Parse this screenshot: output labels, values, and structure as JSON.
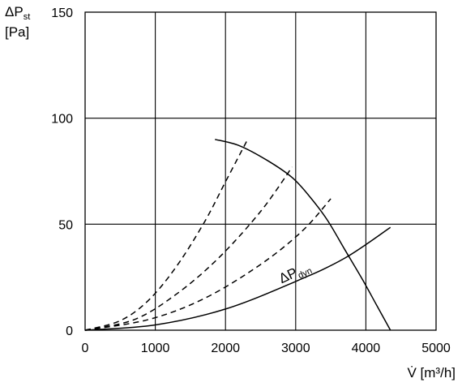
{
  "chart_data": {
    "type": "line",
    "xlim": [
      0,
      5000
    ],
    "ylim": [
      0,
      150
    ],
    "x_ticks": [
      0,
      1000,
      2000,
      3000,
      4000,
      5000
    ],
    "y_ticks": [
      0,
      50,
      100,
      150
    ],
    "x_tick_labels": [
      "0",
      "1000",
      "2000",
      "3000",
      "4000",
      "5000"
    ],
    "y_tick_labels": [
      "0",
      "50",
      "100",
      "150"
    ],
    "grid": true,
    "xlabel": "V̇ [m³/h]",
    "ylabel": {
      "main": "ΔP",
      "sub": "st",
      "unit": "[Pa]"
    },
    "series": [
      {
        "style": "solid",
        "x": [
          1850,
          2200,
          2600,
          2950,
          3200,
          3450,
          3700,
          3950,
          4150,
          4350
        ],
        "y": [
          90,
          87,
          80,
          72,
          63,
          52,
          38,
          24,
          12,
          0
        ]
      },
      {
        "name": {
          "main": "ΔP",
          "sub": "dyn"
        },
        "style": "solid",
        "x": [
          0,
          1000,
          2000,
          3000,
          3700,
          4350
        ],
        "y": [
          0,
          2.5,
          10,
          23,
          34,
          48.5
        ]
      },
      {
        "style": "dashed",
        "x": [
          0,
          500,
          900,
          1300,
          1700,
          2000,
          2300
        ],
        "y": [
          0,
          4.5,
          14,
          30,
          51,
          70,
          89
        ]
      },
      {
        "style": "dashed",
        "x": [
          0,
          700,
          1300,
          1900,
          2500,
          2950
        ],
        "y": [
          0,
          5,
          17,
          34,
          56,
          77
        ]
      },
      {
        "style": "dashed",
        "x": [
          0,
          900,
          1700,
          2500,
          3100,
          3500
        ],
        "y": [
          0,
          5,
          15,
          31,
          47,
          62
        ]
      }
    ],
    "annotations": [
      {
        "text_main": "ΔP",
        "text_sub": "dyn",
        "x": 2800,
        "y": 22,
        "rotate": -25
      }
    ]
  }
}
